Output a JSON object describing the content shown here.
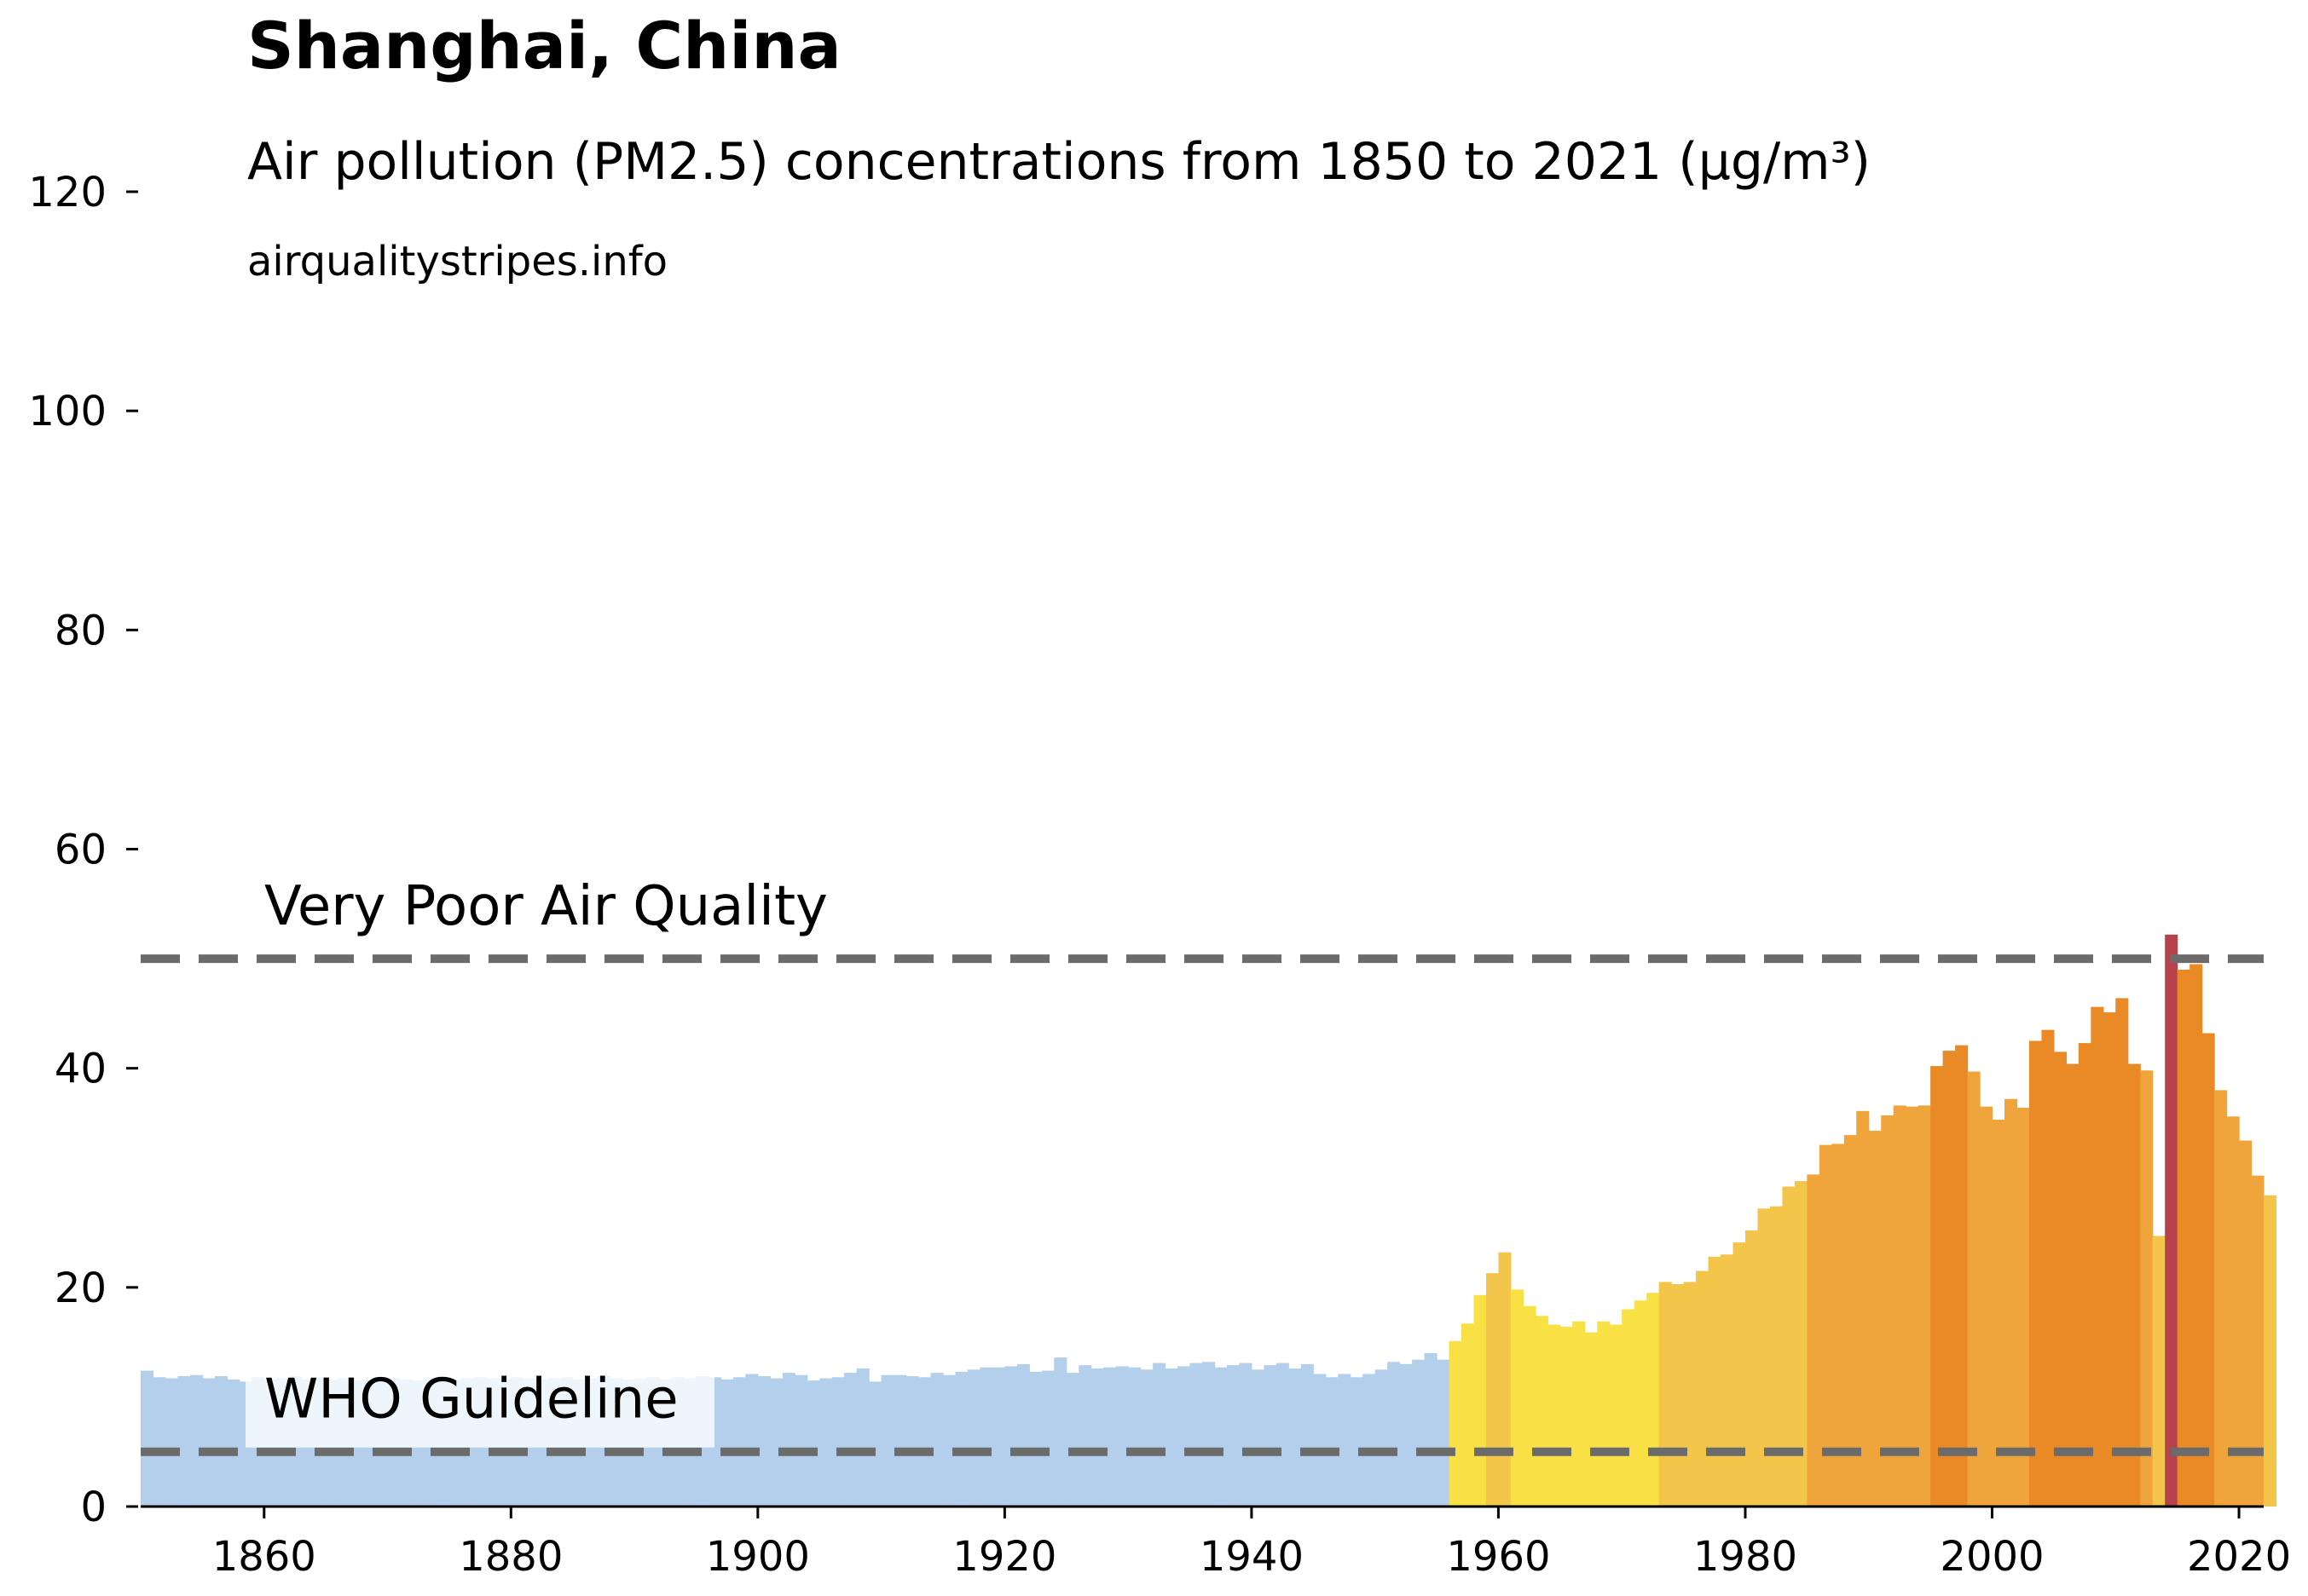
{
  "chart_data": {
    "type": "bar",
    "title": "Shanghai, China",
    "subtitle": "Air pollution (PM2.5) concentrations from 1850 to 2021 (µg/m³)",
    "source": "airqualitystripes.info",
    "xlabel": "",
    "ylabel": "",
    "xlim": [
      1850,
      2022
    ],
    "ylim": [
      0,
      120
    ],
    "x_ticks": [
      1860,
      1880,
      1900,
      1920,
      1940,
      1960,
      1980,
      2000,
      2020
    ],
    "y_ticks": [
      0,
      20,
      40,
      60,
      80,
      100,
      120
    ],
    "grid": false,
    "start_year": 1850,
    "values": [
      12.4,
      11.8,
      11.7,
      11.9,
      12.0,
      11.7,
      11.9,
      11.6,
      11.4,
      11.8,
      11.6,
      11.7,
      11.9,
      11.6,
      11.8,
      11.6,
      11.7,
      11.5,
      11.6,
      11.8,
      11.7,
      11.6,
      11.5,
      11.7,
      11.8,
      11.6,
      11.7,
      11.8,
      11.7,
      11.6,
      11.8,
      11.7,
      11.6,
      11.7,
      11.8,
      11.6,
      11.7,
      11.9,
      11.7,
      11.6,
      11.7,
      11.8,
      11.6,
      11.8,
      11.7,
      11.9,
      11.8,
      11.6,
      11.8,
      12.1,
      11.9,
      11.7,
      12.2,
      12.0,
      11.5,
      11.7,
      11.8,
      12.2,
      12.6,
      11.4,
      12.0,
      12.0,
      11.9,
      11.8,
      12.2,
      12.0,
      12.3,
      12.5,
      12.7,
      12.7,
      12.8,
      13.0,
      12.3,
      12.4,
      13.6,
      12.2,
      12.9,
      12.6,
      12.7,
      12.8,
      12.7,
      12.5,
      13.1,
      12.6,
      12.8,
      13.1,
      13.2,
      12.7,
      12.9,
      13.1,
      12.5,
      12.9,
      13.1,
      12.6,
      13.0,
      12.1,
      11.8,
      12.1,
      11.8,
      12.1,
      12.5,
      13.2,
      13.0,
      13.4,
      14.0,
      13.4,
      15.1,
      16.7,
      19.3,
      21.3,
      23.2,
      19.8,
      18.3,
      17.4,
      16.6,
      16.4,
      16.9,
      15.9,
      16.9,
      16.6,
      18.0,
      18.8,
      19.5,
      20.5,
      20.3,
      20.5,
      21.5,
      22.8,
      23.0,
      24.1,
      25.2,
      27.2,
      27.4,
      29.2,
      29.7,
      30.3,
      33.0,
      33.1,
      33.9,
      36.1,
      34.3,
      35.7,
      36.6,
      36.5,
      36.6,
      40.2,
      41.6,
      42.1,
      39.7,
      36.5,
      35.3,
      37.2,
      36.4,
      42.5,
      43.5,
      41.5,
      40.4,
      42.3,
      45.6,
      45.1,
      46.4,
      40.4,
      39.8,
      24.7,
      52.2,
      49.0,
      49.5,
      43.2,
      38.0,
      35.6,
      33.4,
      30.2,
      28.4
    ],
    "reference_lines": [
      {
        "label": "Very Poor Air Quality",
        "value": 50
      },
      {
        "label": "WHO Guideline",
        "value": 5
      }
    ],
    "colors": {
      "light_blue": "#b3cfec",
      "yellow": "#f8e045",
      "yellow_orange": "#f3c64b",
      "light_orange": "#f0a43c",
      "orange": "#e98a27",
      "red": "#b8424b",
      "reference_line": "#6b6b6b"
    },
    "color_thresholds": [
      {
        "max": 15,
        "color": "light_blue"
      },
      {
        "max": 20,
        "color": "yellow"
      },
      {
        "max": 30,
        "color": "yellow_orange"
      },
      {
        "max": 40,
        "color": "light_orange"
      },
      {
        "max": 50,
        "color": "orange"
      },
      {
        "max": 1000,
        "color": "red"
      }
    ]
  }
}
